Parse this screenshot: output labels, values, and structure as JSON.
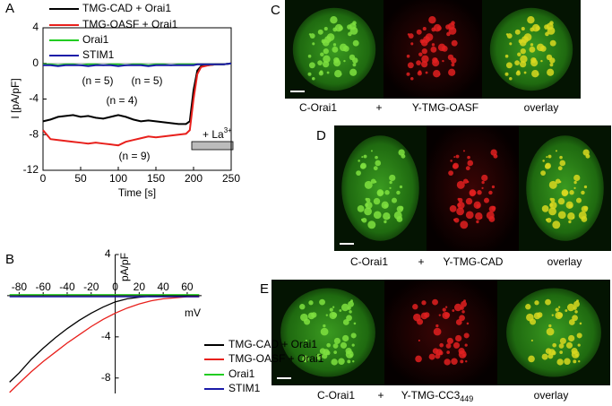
{
  "chart_data": [
    {
      "type": "line",
      "panel": "A",
      "x_label": "Time [s]",
      "y_label": "I [pA/pF]",
      "x": [
        0,
        10,
        20,
        30,
        40,
        50,
        60,
        70,
        80,
        90,
        100,
        110,
        120,
        130,
        140,
        150,
        160,
        170,
        180,
        190,
        195,
        200,
        205,
        210,
        220,
        230,
        240,
        250
      ],
      "series": [
        {
          "name": "TMG-CAD   + Orai1",
          "color": "#000000",
          "values": [
            -6.5,
            -6.3,
            -6,
            -5.9,
            -5.8,
            -6,
            -5.9,
            -6.1,
            -6.2,
            -6,
            -5.8,
            -6,
            -6.3,
            -6.5,
            -6.4,
            -6.5,
            -6.6,
            -6.7,
            -6.8,
            -6.8,
            -6.5,
            -3,
            -0.8,
            -0.3,
            -0.2,
            -0.1,
            -0.1,
            0
          ]
        },
        {
          "name": "TMG-OASF + Orai1",
          "color": "#e8201c",
          "values": [
            -7.5,
            -8.5,
            -8.6,
            -8.7,
            -8.8,
            -8.9,
            -9,
            -8.9,
            -9,
            -9.1,
            -9.2,
            -8.8,
            -8.6,
            -8.4,
            -8.2,
            -8.3,
            -8.2,
            -8.1,
            -8,
            -7.9,
            -7.5,
            -4,
            -1.2,
            -0.4,
            -0.2,
            -0.1,
            -0.1,
            0
          ]
        },
        {
          "name": "Orai1",
          "color": "#22cc22",
          "values": [
            -0.1,
            -0.1,
            -0.2,
            -0.1,
            -0.1,
            -0.2,
            -0.1,
            -0.1,
            -0.2,
            -0.1,
            -0.1,
            -0.2,
            -0.1,
            -0.1,
            -0.2,
            -0.1,
            -0.1,
            -0.2,
            -0.1,
            -0.1,
            -0.1,
            -0.1,
            -0.1,
            -0.1,
            -0.1,
            -0.1,
            -0.1,
            0
          ]
        },
        {
          "name": "STIM1",
          "color": "#1a1aa8",
          "values": [
            -0.2,
            -0.2,
            -0.3,
            -0.2,
            -0.2,
            -0.2,
            -0.3,
            -0.2,
            -0.2,
            -0.2,
            -0.3,
            -0.2,
            -0.2,
            -0.2,
            -0.3,
            -0.2,
            -0.2,
            -0.2,
            -0.2,
            -0.2,
            -0.2,
            -0.2,
            -0.1,
            -0.1,
            -0.1,
            -0.1,
            -0.1,
            0
          ]
        }
      ],
      "xlim": [
        0,
        250
      ],
      "ylim": [
        -12,
        4
      ],
      "xticks": [
        0,
        50,
        100,
        150,
        200,
        250
      ],
      "yticks": [
        -12,
        -8,
        -4,
        0,
        4
      ],
      "annotations": [
        {
          "text": "(n = 5)",
          "color": "#22cc22"
        },
        {
          "text": "(n = 5)",
          "color": "#1a1aa8"
        },
        {
          "text": "(n = 4)",
          "color": "#000000"
        },
        {
          "text": "(n = 9)",
          "color": "#e8201c"
        }
      ],
      "blocker_label": {
        "text": "+ La",
        "superscript": "3+"
      }
    },
    {
      "type": "line",
      "panel": "B",
      "x_label": "mV",
      "y_label": "pA/pF",
      "x": [
        -88,
        -80,
        -70,
        -60,
        -50,
        -40,
        -30,
        -20,
        -10,
        0,
        10,
        20,
        30,
        40,
        50,
        60,
        70
      ],
      "series": [
        {
          "name": "TMG-CAD + Orai1",
          "color": "#000000",
          "values": [
            -8.4,
            -7.5,
            -6.2,
            -5.1,
            -4.1,
            -3.2,
            -2.4,
            -1.7,
            -1.1,
            -0.6,
            -0.3,
            -0.15,
            -0.05,
            0,
            0,
            0,
            0
          ]
        },
        {
          "name": "TMG-OASF + Orai1",
          "color": "#e8201c",
          "values": [
            -9.4,
            -8.5,
            -7.4,
            -6.4,
            -5.5,
            -4.6,
            -3.8,
            -3,
            -2.3,
            -1.7,
            -1.2,
            -0.8,
            -0.5,
            -0.3,
            -0.2,
            -0.1,
            -0.1
          ]
        },
        {
          "name": "Orai1",
          "color": "#22cc22",
          "values": [
            0.1,
            0.1,
            0.1,
            0.1,
            0.1,
            0.1,
            0.1,
            0.1,
            0.1,
            0.1,
            0.1,
            0.1,
            0.1,
            0.1,
            0.1,
            0.1,
            0.1
          ]
        },
        {
          "name": "STIM1",
          "color": "#1a1aa8",
          "values": [
            -0.1,
            -0.1,
            -0.1,
            -0.1,
            -0.1,
            -0.1,
            -0.1,
            -0.1,
            -0.1,
            -0.1,
            -0.1,
            -0.1,
            -0.1,
            -0.1,
            -0.1,
            -0.1,
            -0.1
          ]
        }
      ],
      "xlim": [
        -90,
        72
      ],
      "ylim": [
        -9.5,
        4
      ],
      "xticks": [
        -80,
        -60,
        -40,
        -20,
        0,
        20,
        40,
        60
      ],
      "yticks": [
        -8,
        -4,
        4
      ]
    }
  ],
  "image_panels": [
    {
      "panel": "C",
      "labels": [
        "C-Orai1",
        "+",
        "Y-TMG-OASF",
        "overlay"
      ]
    },
    {
      "panel": "D",
      "labels": [
        "C-Orai1",
        "+",
        "Y-TMG-CAD",
        "overlay"
      ]
    },
    {
      "panel": "E",
      "labels": [
        "C-Orai1",
        "+",
        "Y-TMG-CC3",
        "overlay"
      ],
      "label_subscript": "449"
    }
  ]
}
